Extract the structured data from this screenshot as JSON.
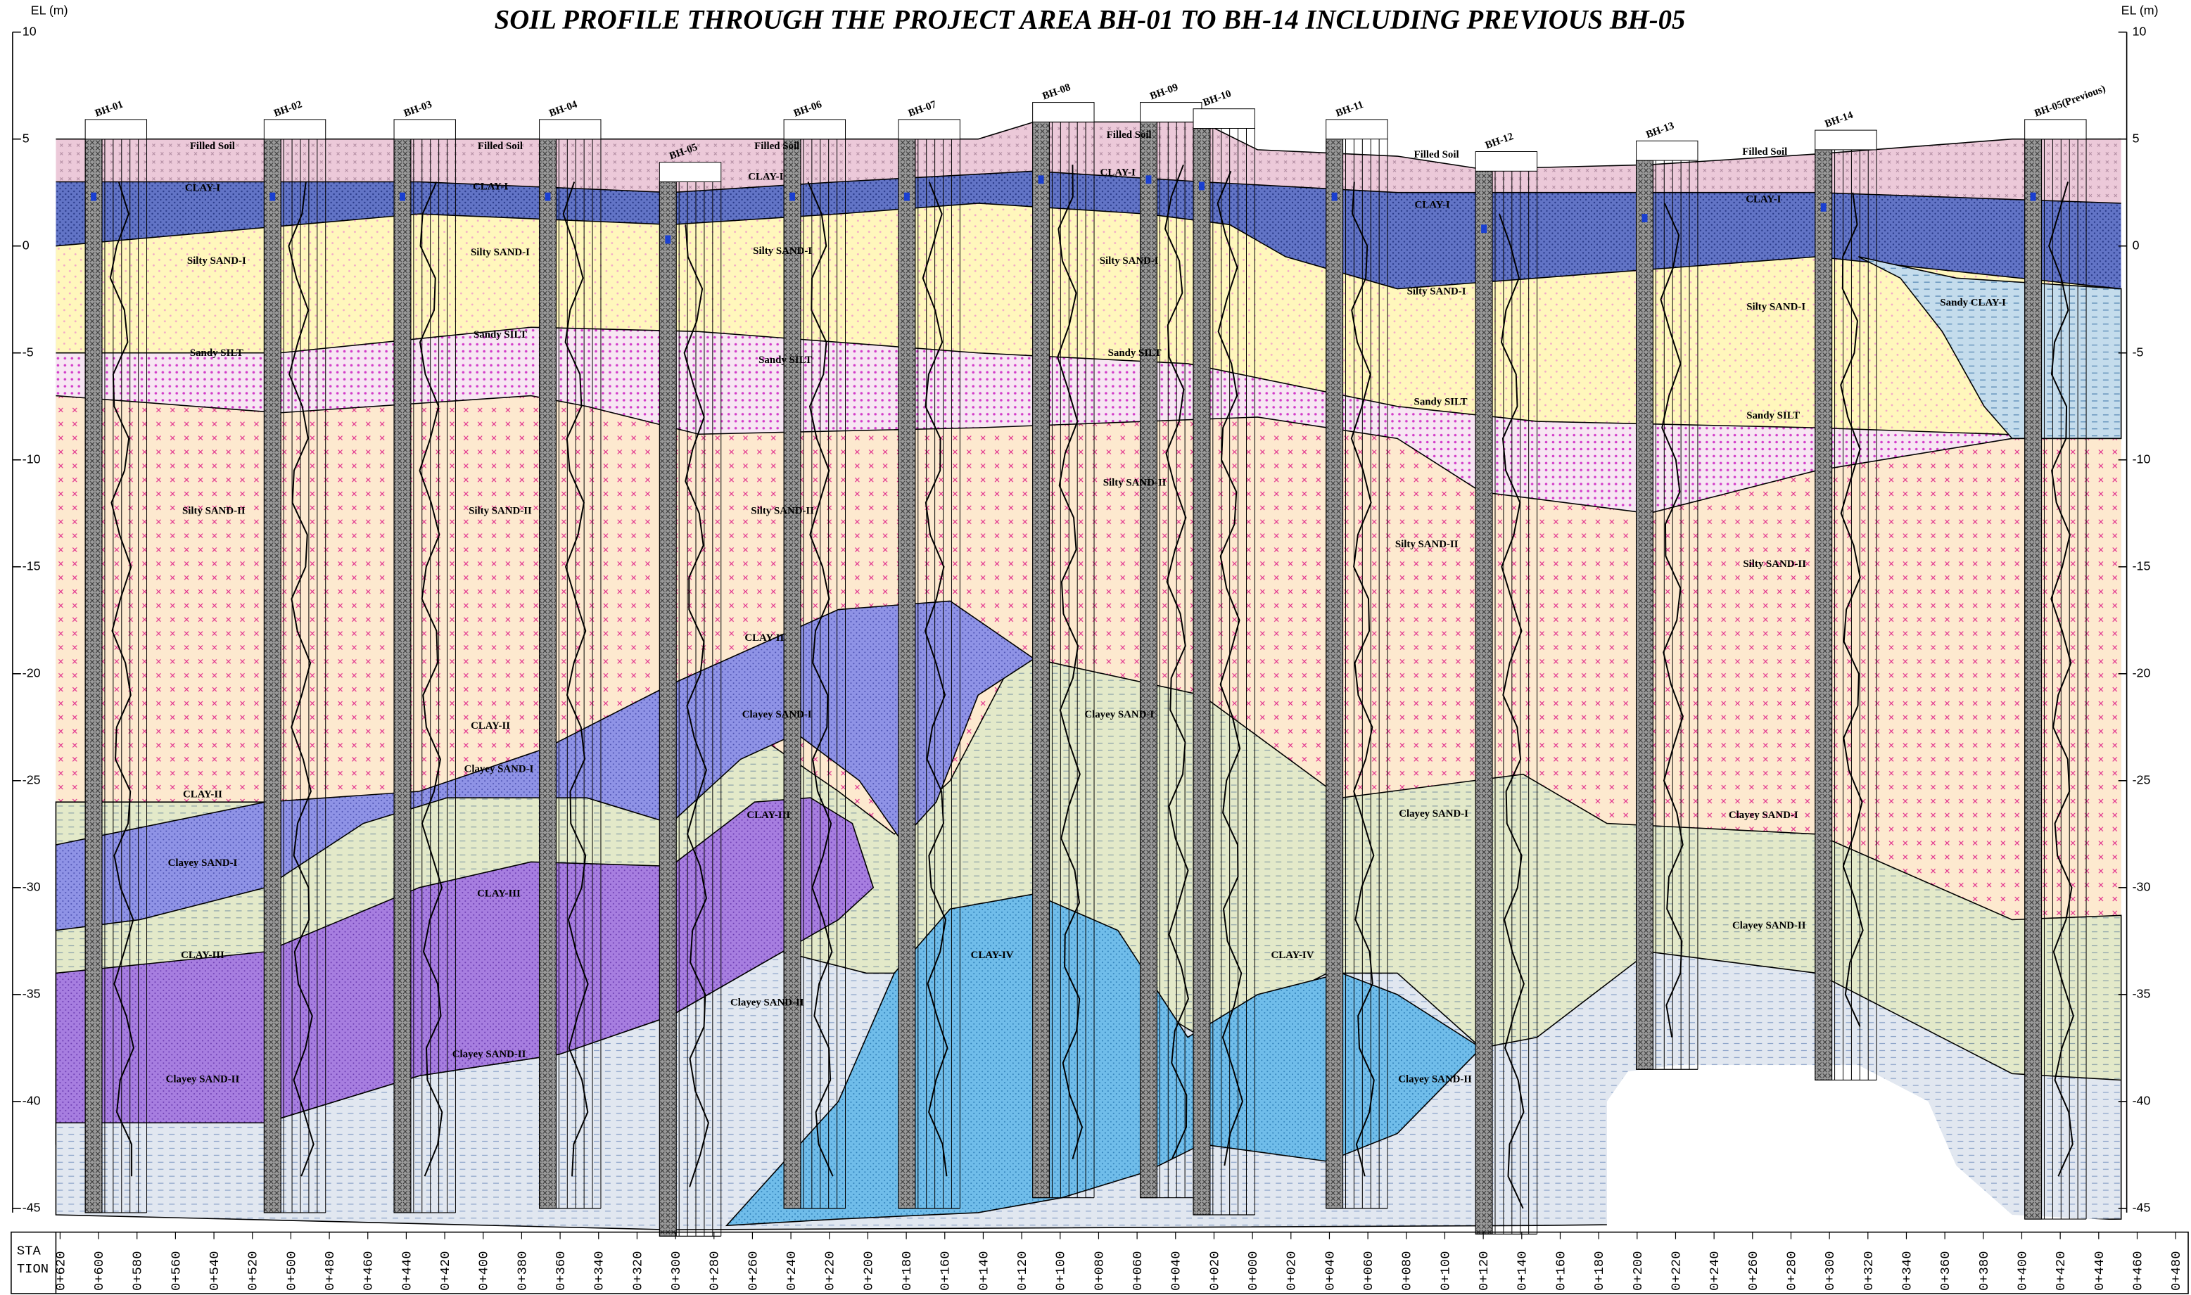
{
  "title": "SOIL PROFILE THROUGH THE PROJECT AREA BH-01 TO BH-14 INCLUDING PREVIOUS BH-05",
  "elevation_axis": {
    "label_left": "EL (m)",
    "label_right": "EL (m)",
    "ticks": [
      10,
      5,
      0,
      -5,
      -10,
      -15,
      -20,
      -25,
      -30,
      -35,
      -40,
      -45
    ]
  },
  "station_axis": {
    "title": [
      "STA",
      "TION"
    ],
    "labels": [
      "0+620",
      "0+600",
      "0+580",
      "0+560",
      "0+540",
      "0+520",
      "0+500",
      "0+480",
      "0+460",
      "0+440",
      "0+420",
      "0+400",
      "0+380",
      "0+360",
      "0+340",
      "0+320",
      "0+300",
      "0+280",
      "0+260",
      "0+240",
      "0+220",
      "0+200",
      "0+180",
      "0+160",
      "0+140",
      "0+120",
      "0+100",
      "0+080",
      "0+060",
      "0+040",
      "0+020",
      "0+000",
      "0+020",
      "0+040",
      "0+060",
      "0+080",
      "0+100",
      "0+120",
      "0+140",
      "0+160",
      "0+180",
      "0+200",
      "0+220",
      "0+240",
      "0+260",
      "0+280",
      "0+300",
      "0+320",
      "0+340",
      "0+360",
      "0+380",
      "0+400",
      "0+420",
      "0+440",
      "0+460",
      "0+480"
    ]
  },
  "boreholes": [
    "BH-01",
    "BH-02",
    "BH-03",
    "BH-04",
    "BH-05",
    "BH-06",
    "BH-07",
    "BH-08",
    "BH-09",
    "BH-10",
    "BH-11",
    "BH-12",
    "BH-13",
    "BH-14",
    "BH-05(Previous)"
  ],
  "layer_labels": [
    "Filled Soil",
    "Filled Soil",
    "Filled Soil",
    "Filled Soil",
    "Filled Soil",
    "Filled Soil",
    "CLAY-I",
    "CLAY-I",
    "CLAY-I",
    "CLAY-I",
    "CLAY-I",
    "CLAY-I",
    "Silty SAND-I",
    "Silty SAND-I",
    "Silty SAND-I",
    "Silty SAND-I",
    "Silty SAND-I",
    "Silty SAND-I",
    "Sandy SILT",
    "Sandy SILT",
    "Sandy SILT",
    "Sandy SILT",
    "Sandy SILT",
    "Sandy SILT",
    "Silty SAND-II",
    "Silty SAND-II",
    "Silty SAND-II",
    "Silty SAND-II",
    "Silty SAND-II",
    "Silty SAND-II",
    "Sandy CLAY-I",
    "CLAY-II",
    "CLAY-II",
    "CLAY-II",
    "Clayey SAND-I",
    "Clayey SAND-I",
    "Clayey SAND-I",
    "Clayey SAND-I",
    "Clayey SAND-I",
    "Clayey SAND-I",
    "CLAY-III",
    "CLAY-III",
    "CLAY-III",
    "CLAY-IV",
    "CLAY-IV",
    "Clayey SAND-II",
    "Clayey SAND-II",
    "Clayey SAND-II",
    "Clayey SAND-II",
    "Clayey SAND-II"
  ]
}
